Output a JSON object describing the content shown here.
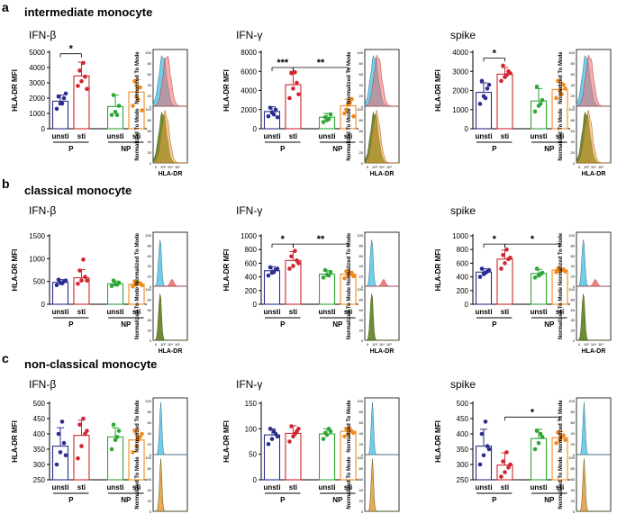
{
  "figure": {
    "sections": [
      {
        "letter": "a",
        "title": "intermediate monocyte"
      },
      {
        "letter": "b",
        "title": "classical monocyte"
      },
      {
        "letter": "c",
        "title": "non-classical monocyte"
      }
    ],
    "ylabel": "HLA-DR MFI",
    "hist_ylabel": "Normalized To Mode",
    "hist_xlabel": "HLA-DR",
    "hist_ticks": [
      "0",
      "10³",
      "10⁴",
      "10⁵"
    ],
    "hist_yticks": [
      "0",
      "20",
      "40",
      "60",
      "80",
      "100"
    ],
    "bar_categories": [
      "unsti",
      "sti",
      "unsti",
      "sti"
    ],
    "group_labels": [
      "P",
      "NP"
    ]
  },
  "colors": {
    "unsti_P": "#2b2e8f",
    "sti_P": "#d0262f",
    "unsti_NP": "#2fa636",
    "sti_NP": "#f08a1e",
    "hist_cyan": "#58c6e6",
    "hist_red": "#ef6b6b",
    "hist_green": "#5e7f1e",
    "hist_orange": "#e9a040"
  },
  "chart_data": [
    {
      "type": "bar",
      "section": "a",
      "title": "IFN-β",
      "yticks": [
        "0",
        "1000",
        "2000",
        "3000",
        "4000",
        "5000"
      ],
      "ylim": [
        0,
        5000
      ],
      "categories": [
        "unsti",
        "sti",
        "unsti",
        "sti"
      ],
      "values": [
        1800,
        3450,
        1450,
        2400
      ],
      "err": [
        400,
        900,
        750,
        800
      ],
      "points": [
        [
          1300,
          1650,
          2000,
          2100,
          1650,
          2300
        ],
        [
          2800,
          3100,
          3400,
          3800,
          4300,
          2600
        ],
        [
          900,
          1100,
          1500,
          2200,
          900
        ],
        [
          1500,
          2100,
          2700,
          3100,
          1900,
          1200
        ]
      ],
      "sig": [
        {
          "from": 0,
          "to": 1,
          "label": "*",
          "y": 4900
        }
      ]
    },
    {
      "type": "bar",
      "section": "a",
      "title": "IFN-γ",
      "yticks": [
        "0",
        "2000",
        "4000",
        "6000",
        "8000"
      ],
      "ylim": [
        0,
        8000
      ],
      "categories": [
        "unsti",
        "sti",
        "unsti",
        "sti"
      ],
      "values": [
        1800,
        4600,
        1200,
        2400
      ],
      "err": [
        500,
        1400,
        400,
        700
      ],
      "points": [
        [
          1300,
          1700,
          2000,
          2200,
          1500,
          1200
        ],
        [
          3200,
          4200,
          4800,
          5800,
          5900,
          3600
        ],
        [
          700,
          900,
          1500,
          1200,
          1000
        ],
        [
          1600,
          2500,
          3100,
          2000,
          2700,
          1300
        ]
      ],
      "sig": [
        {
          "from": 0,
          "to": 1,
          "label": "***",
          "y": 6400
        },
        {
          "from": 1,
          "to": 3,
          "label": "**",
          "y": 6400
        }
      ]
    },
    {
      "type": "bar",
      "section": "a",
      "title": "spike",
      "yticks": [
        "0",
        "1000",
        "2000",
        "3000",
        "4000"
      ],
      "ylim": [
        0,
        4000
      ],
      "categories": [
        "unsti",
        "sti",
        "unsti",
        "sti"
      ],
      "values": [
        1900,
        2850,
        1450,
        2050
      ],
      "err": [
        500,
        350,
        650,
        400
      ],
      "points": [
        [
          1300,
          1700,
          2100,
          2500,
          1600,
          2300
        ],
        [
          2500,
          2700,
          3000,
          3300,
          2800,
          2900
        ],
        [
          900,
          1200,
          1500,
          2200,
          1300
        ],
        [
          1600,
          2000,
          2300,
          2500,
          1800,
          2100
        ]
      ],
      "sig": [
        {
          "from": 0,
          "to": 1,
          "label": "*",
          "y": 3700
        }
      ]
    },
    {
      "type": "bar",
      "section": "b",
      "title": "IFN-β",
      "yticks": [
        "0",
        "500",
        "1000",
        "1500"
      ],
      "ylim": [
        0,
        1500
      ],
      "categories": [
        "unsti",
        "sti",
        "unsti",
        "sti"
      ],
      "values": [
        480,
        580,
        450,
        440
      ],
      "err": [
        60,
        180,
        60,
        50
      ],
      "points": [
        [
          420,
          470,
          500,
          540,
          460,
          520
        ],
        [
          450,
          520,
          600,
          740,
          980,
          520
        ],
        [
          400,
          440,
          470,
          520,
          430
        ],
        [
          390,
          430,
          460,
          500,
          470,
          420
        ]
      ],
      "sig": []
    },
    {
      "type": "bar",
      "section": "b",
      "title": "IFN-γ",
      "yticks": [
        "0",
        "200",
        "400",
        "600",
        "800",
        "1000"
      ],
      "ylim": [
        0,
        1000
      ],
      "categories": [
        "unsti",
        "sti",
        "unsti",
        "sti"
      ],
      "values": [
        490,
        640,
        440,
        440
      ],
      "err": [
        60,
        130,
        50,
        40
      ],
      "points": [
        [
          420,
          460,
          510,
          540,
          470,
          520
        ],
        [
          520,
          560,
          640,
          700,
          780,
          600
        ],
        [
          390,
          430,
          470,
          500,
          420
        ],
        [
          380,
          420,
          460,
          480,
          440,
          410
        ]
      ],
      "sig": [
        {
          "from": 0,
          "to": 1,
          "label": "*",
          "y": 880
        },
        {
          "from": 1,
          "to": 3,
          "label": "**",
          "y": 880
        }
      ]
    },
    {
      "type": "bar",
      "section": "b",
      "title": "spike",
      "yticks": [
        "0",
        "200",
        "400",
        "600",
        "800",
        "1000"
      ],
      "ylim": [
        0,
        1000
      ],
      "categories": [
        "unsti",
        "sti",
        "unsti",
        "sti"
      ],
      "values": [
        470,
        660,
        450,
        500
      ],
      "err": [
        50,
        130,
        60,
        30
      ],
      "points": [
        [
          400,
          440,
          480,
          520,
          460,
          500
        ],
        [
          520,
          600,
          660,
          720,
          800,
          680
        ],
        [
          390,
          420,
          460,
          520,
          440
        ],
        [
          470,
          490,
          510,
          520,
          500,
          480
        ]
      ],
      "sig": [
        {
          "from": 0,
          "to": 1,
          "label": "*",
          "y": 880
        },
        {
          "from": 1,
          "to": 3,
          "label": "*",
          "y": 880
        }
      ]
    },
    {
      "type": "bar",
      "section": "c",
      "title": "IFN-β",
      "yticks": [
        "250",
        "300",
        "350",
        "400",
        "450",
        "500"
      ],
      "ylim": [
        250,
        500
      ],
      "categories": [
        "unsti",
        "sti",
        "unsti",
        "sti"
      ],
      "values": [
        360,
        395,
        390,
        380
      ],
      "err": [
        60,
        50,
        30,
        35
      ],
      "points": [
        [
          300,
          340,
          370,
          400,
          440,
          330
        ],
        [
          320,
          360,
          400,
          430,
          450,
          410
        ],
        [
          350,
          380,
          410,
          430,
          390
        ],
        [
          340,
          360,
          390,
          410,
          380,
          400
        ]
      ],
      "sig": []
    },
    {
      "type": "bar",
      "section": "c",
      "title": "IFN-γ",
      "yticks": [
        "0",
        "50",
        "100",
        "150"
      ],
      "ylim": [
        0,
        150
      ],
      "categories": [
        "unsti",
        "sti",
        "unsti",
        "sti"
      ],
      "values": [
        88,
        91,
        90,
        95
      ],
      "err": [
        12,
        15,
        10,
        8
      ],
      "points": [
        [
          70,
          80,
          90,
          100,
          95,
          85
        ],
        [
          75,
          85,
          95,
          105,
          90,
          100
        ],
        [
          80,
          88,
          95,
          92,
          100
        ],
        [
          85,
          90,
          95,
          100,
          98,
          92
        ]
      ],
      "sig": []
    },
    {
      "type": "bar",
      "section": "c",
      "title": "spike",
      "yticks": [
        "250",
        "300",
        "350",
        "400",
        "450",
        "500"
      ],
      "ylim": [
        250,
        500
      ],
      "categories": [
        "unsti",
        "sti",
        "unsti",
        "sti"
      ],
      "values": [
        360,
        298,
        385,
        388
      ],
      "err": [
        55,
        40,
        30,
        20
      ],
      "points": [
        [
          300,
          330,
          360,
          400,
          440,
          350
        ],
        [
          260,
          275,
          290,
          310,
          340,
          300
        ],
        [
          350,
          370,
          390,
          410,
          400
        ],
        [
          370,
          380,
          395,
          405,
          390,
          380
        ]
      ],
      "sig": [
        {
          "from": 1,
          "to": 3,
          "label": "*",
          "y": 455
        }
      ]
    }
  ],
  "histograms": [
    {
      "section": "a",
      "col": 0,
      "top": [
        "hist_cyan",
        "hist_red"
      ],
      "bottom": [
        "hist_green",
        "hist_orange"
      ],
      "top_shift": 0.12,
      "bottom_shift": 0.08,
      "top_red_tail": false
    },
    {
      "section": "a",
      "col": 1,
      "top": [
        "hist_cyan",
        "hist_red"
      ],
      "bottom": [
        "hist_green",
        "hist_orange"
      ],
      "top_shift": 0.1,
      "bottom_shift": 0.06,
      "top_red_tail": false
    },
    {
      "section": "a",
      "col": 2,
      "top": [
        "hist_cyan",
        "hist_red"
      ],
      "bottom": [
        "hist_green",
        "hist_orange"
      ],
      "top_shift": 0.1,
      "bottom_shift": 0.07,
      "top_red_tail": false
    },
    {
      "section": "b",
      "col": 0,
      "top": [
        "hist_cyan",
        "hist_red"
      ],
      "bottom": [
        "hist_green",
        "hist_orange"
      ],
      "top_shift": 0.0,
      "bottom_shift": 0.0,
      "top_red_tail": true
    },
    {
      "section": "b",
      "col": 1,
      "top": [
        "hist_cyan",
        "hist_red"
      ],
      "bottom": [
        "hist_green",
        "hist_orange"
      ],
      "top_shift": 0.0,
      "bottom_shift": 0.0,
      "top_red_tail": true
    },
    {
      "section": "b",
      "col": 2,
      "top": [
        "hist_cyan",
        "hist_red"
      ],
      "bottom": [
        "hist_green",
        "hist_orange"
      ],
      "top_shift": 0.0,
      "bottom_shift": 0.0,
      "top_red_tail": true
    },
    {
      "section": "c",
      "col": 0,
      "top": [
        "hist_cyan",
        "hist_red"
      ],
      "bottom": [
        "hist_green",
        "hist_orange"
      ],
      "top_shift": 0.0,
      "bottom_shift": 0.0,
      "top_red_tail": false
    },
    {
      "section": "c",
      "col": 1,
      "top": [
        "hist_cyan",
        "hist_red"
      ],
      "bottom": [
        "hist_green",
        "hist_orange"
      ],
      "top_shift": 0.0,
      "bottom_shift": 0.0,
      "top_red_tail": false
    },
    {
      "section": "c",
      "col": 2,
      "top": [
        "hist_cyan",
        "hist_red"
      ],
      "bottom": [
        "hist_green",
        "hist_orange"
      ],
      "top_shift": 0.0,
      "bottom_shift": 0.0,
      "top_red_tail": false
    }
  ]
}
